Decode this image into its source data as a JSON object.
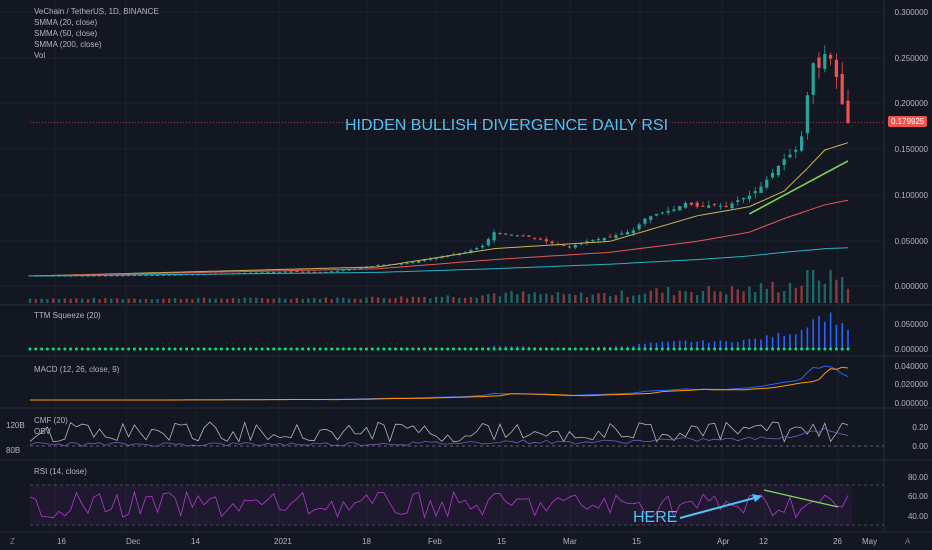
{
  "chart_data": [
    {
      "type": "candlestick",
      "title": "VeChain / TetherUS, 1D, BINANCE",
      "indicators": [
        "SMMA (20, close)",
        "SMMA (50, close)",
        "SMMA (200, close)",
        "Vol"
      ],
      "y_ticks": [
        "0.300000",
        "0.250000",
        "0.200000",
        "0.150000",
        "0.100000",
        "0.050000",
        "0.000000"
      ],
      "last_price": "0.179925",
      "annotation": "HIDDEN BULLISH DIVERGENCE DAILY RSI",
      "x_ticks": [
        "16",
        "Dec",
        "14",
        "2021",
        "18",
        "Feb",
        "15",
        "Mar",
        "15",
        "Apr",
        "12",
        "26",
        "May"
      ],
      "price_series": [
        [
          0,
          0.0125
        ],
        [
          10,
          0.0125
        ],
        [
          20,
          0.013
        ],
        [
          30,
          0.014
        ],
        [
          40,
          0.016
        ],
        [
          45,
          0.017
        ],
        [
          50,
          0.016
        ],
        [
          55,
          0.019
        ],
        [
          60,
          0.024
        ],
        [
          65,
          0.026
        ],
        [
          70,
          0.032
        ],
        [
          75,
          0.038
        ],
        [
          78,
          0.045
        ],
        [
          80,
          0.06
        ],
        [
          82,
          0.058
        ],
        [
          86,
          0.055
        ],
        [
          88,
          0.052
        ],
        [
          90,
          0.048
        ],
        [
          93,
          0.044
        ],
        [
          96,
          0.05
        ],
        [
          100,
          0.055
        ],
        [
          104,
          0.062
        ],
        [
          106,
          0.075
        ],
        [
          108,
          0.08
        ],
        [
          111,
          0.085
        ],
        [
          113,
          0.092
        ],
        [
          115,
          0.088
        ],
        [
          118,
          0.09
        ],
        [
          120,
          0.088
        ],
        [
          122,
          0.095
        ],
        [
          124,
          0.1
        ],
        [
          126,
          0.11
        ],
        [
          128,
          0.125
        ],
        [
          130,
          0.14
        ],
        [
          132,
          0.15
        ],
        [
          133,
          0.165
        ],
        [
          134,
          0.21
        ],
        [
          135,
          0.245
        ],
        [
          136,
          0.24
        ],
        [
          137,
          0.255
        ],
        [
          138,
          0.25
        ],
        [
          139,
          0.23
        ],
        [
          140,
          0.2
        ],
        [
          141,
          0.18
        ]
      ],
      "smma20": [
        [
          0,
          0.012
        ],
        [
          60,
          0.022
        ],
        [
          80,
          0.042
        ],
        [
          100,
          0.05
        ],
        [
          115,
          0.078
        ],
        [
          124,
          0.088
        ],
        [
          130,
          0.105
        ],
        [
          134,
          0.13
        ],
        [
          137,
          0.15
        ],
        [
          141,
          0.158
        ]
      ],
      "smma50": [
        [
          0,
          0.012
        ],
        [
          60,
          0.02
        ],
        [
          80,
          0.03
        ],
        [
          100,
          0.038
        ],
        [
          115,
          0.05
        ],
        [
          124,
          0.06
        ],
        [
          130,
          0.075
        ],
        [
          137,
          0.09
        ],
        [
          141,
          0.095
        ]
      ],
      "smma200": [
        [
          0,
          0.012
        ],
        [
          60,
          0.016
        ],
        [
          80,
          0.02
        ],
        [
          100,
          0.025
        ],
        [
          115,
          0.03
        ],
        [
          124,
          0.034
        ],
        [
          130,
          0.038
        ],
        [
          137,
          0.042
        ],
        [
          141,
          0.043
        ]
      ],
      "trendline": [
        [
          124,
          0.08
        ],
        [
          141,
          0.138
        ]
      ]
    },
    {
      "type": "bar",
      "title": "TTM Squeeze (20)",
      "y_ticks": [
        "0.050000",
        "0.000000"
      ]
    },
    {
      "type": "line",
      "title": "MACD (12, 26, close, 9)",
      "y_ticks": [
        "0.040000",
        "0.020000",
        "0.000000"
      ]
    },
    {
      "type": "line",
      "title": "CMF (20)",
      "subtitle": "OBV",
      "left_ticks": [
        "120B",
        "80B"
      ],
      "y_ticks": [
        "0.20",
        "0.00"
      ]
    },
    {
      "type": "line",
      "title": "RSI (14, close)",
      "y_ticks": [
        "80.00",
        "60.00",
        "40.00"
      ],
      "annotation": "HERE"
    }
  ],
  "colors": {
    "background": "#131722",
    "up": "#26a69a",
    "down": "#ef5350",
    "smma20": "#c9b458",
    "smma50": "#e35a5a",
    "smma200": "#2ab0c4",
    "trendline": "#7ed957",
    "rsi": "#b339d0",
    "annotation": "#4fc3f7"
  },
  "corner_left": "Z",
  "corner_right": "A"
}
